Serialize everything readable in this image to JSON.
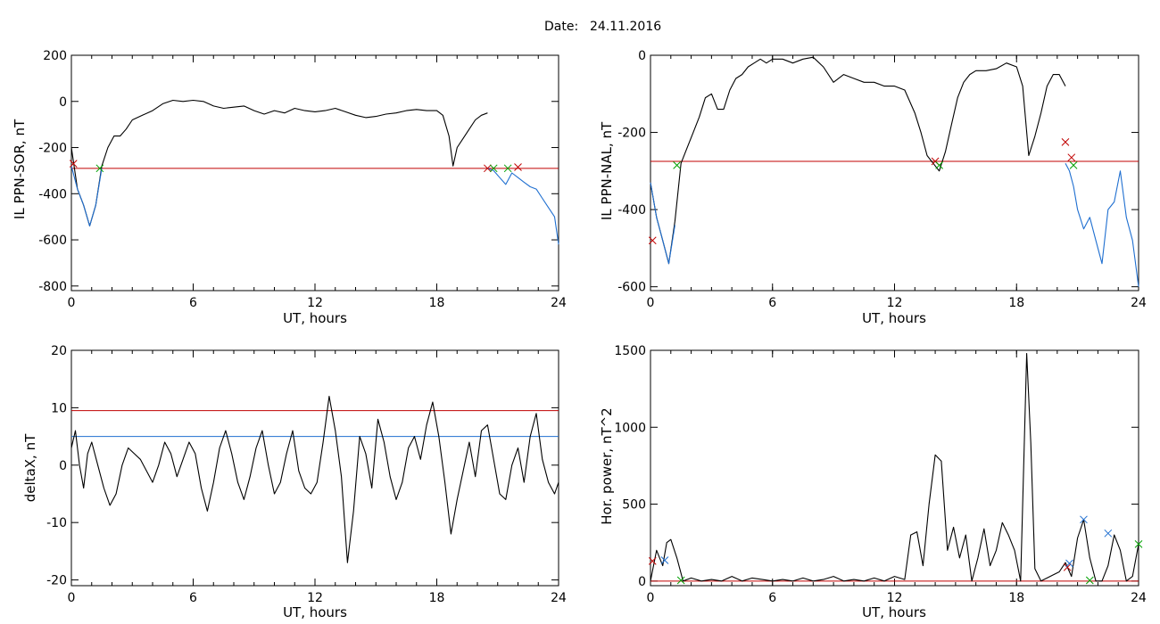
{
  "figure": {
    "date_label": "Date:",
    "date_value": "24.11.2016"
  },
  "colors": {
    "trace": "#000000",
    "threshold_red": "#c00000",
    "threshold_blue": "#1f6fd0",
    "marker_red": "#c00000",
    "marker_green": "#00a000",
    "marker_blue": "#1f6fd0"
  },
  "chart_data": [
    {
      "type": "line",
      "xlabel": "UT, hours",
      "ylabel": "IL PPN-SOR, nT",
      "xlim": [
        0,
        24
      ],
      "ylim": [
        -820,
        200
      ],
      "xticks": [
        "0",
        "6",
        "12",
        "18",
        "24"
      ],
      "yticks": [
        "200",
        "0",
        "-200",
        "-400",
        "-600",
        "-800"
      ],
      "grid": false,
      "series": [
        {
          "color": "#000000",
          "x": [
            0,
            0.3,
            0.6,
            0.9,
            1.2,
            1.5,
            1.8,
            2.1,
            2.4,
            2.7,
            3,
            3.5,
            4,
            4.5,
            5,
            5.5,
            6,
            6.5,
            7,
            7.5,
            8,
            8.5,
            9,
            9.5,
            10,
            10.5,
            11,
            11.5,
            12,
            12.5,
            13,
            13.5,
            14,
            14.5,
            15,
            15.5,
            16,
            16.5,
            17,
            17.5,
            18,
            18.3,
            18.6,
            18.8,
            19,
            19.3,
            19.6,
            19.9,
            20.2,
            20.5
          ],
          "y": [
            -200,
            -380,
            -450,
            -540,
            -450,
            -280,
            -200,
            -150,
            -150,
            -120,
            -80,
            -60,
            -40,
            -10,
            5,
            0,
            5,
            0,
            -20,
            -30,
            -25,
            -20,
            -40,
            -55,
            -40,
            -50,
            -30,
            -40,
            -45,
            -40,
            -30,
            -45,
            -60,
            -70,
            -65,
            -55,
            -50,
            -40,
            -35,
            -40,
            -40,
            -60,
            -150,
            -280,
            -200,
            -160,
            -120,
            -80,
            -60,
            -50
          ]
        },
        {
          "color": "#1f6fd0",
          "x": [
            0,
            0.3,
            0.6,
            0.9,
            1.2,
            1.5,
            20.5,
            20.8,
            21.1,
            21.4,
            21.7,
            22,
            22.3,
            22.6,
            22.9,
            23.2,
            23.5,
            23.8,
            24
          ],
          "y": [
            -280,
            -380,
            -450,
            -540,
            -450,
            -290,
            -290,
            -300,
            -330,
            -360,
            -310,
            -330,
            -350,
            -370,
            -380,
            -420,
            -460,
            -500,
            -620
          ]
        }
      ],
      "thresholds": [
        {
          "y": -290,
          "color": "#c00000"
        }
      ],
      "markers": [
        {
          "x": 0.1,
          "y": -270,
          "color": "#c00000"
        },
        {
          "x": 1.4,
          "y": -290,
          "color": "#00a000"
        },
        {
          "x": 20.5,
          "y": -290,
          "color": "#c00000"
        },
        {
          "x": 20.8,
          "y": -290,
          "color": "#00a000"
        },
        {
          "x": 21.5,
          "y": -290,
          "color": "#00a000"
        },
        {
          "x": 22.0,
          "y": -285,
          "color": "#c00000"
        }
      ]
    },
    {
      "type": "line",
      "xlabel": "UT, hours",
      "ylabel": "IL PPN-NAL, nT",
      "xlim": [
        0,
        24
      ],
      "ylim": [
        -610,
        0
      ],
      "xticks": [
        "0",
        "6",
        "12",
        "18",
        "24"
      ],
      "yticks": [
        "0",
        "-200",
        "-400",
        "-600"
      ],
      "grid": false,
      "series": [
        {
          "color": "#000000",
          "x": [
            0,
            0.3,
            0.6,
            0.9,
            1.2,
            1.5,
            1.8,
            2.1,
            2.4,
            2.7,
            3,
            3.3,
            3.6,
            3.9,
            4.2,
            4.5,
            4.8,
            5.1,
            5.4,
            5.7,
            6,
            6.5,
            7,
            7.5,
            8,
            8.5,
            9,
            9.5,
            10,
            10.5,
            11,
            11.5,
            12,
            12.5,
            13,
            13.3,
            13.6,
            13.9,
            14.2,
            14.5,
            14.8,
            15.1,
            15.4,
            15.7,
            16,
            16.5,
            17,
            17.5,
            18,
            18.3,
            18.6,
            18.9,
            19.2,
            19.5,
            19.8,
            20.1,
            20.4
          ],
          "y": [
            -330,
            -420,
            -480,
            -540,
            -430,
            -280,
            -240,
            -200,
            -160,
            -110,
            -100,
            -140,
            -140,
            -90,
            -60,
            -50,
            -30,
            -20,
            -10,
            -20,
            -10,
            -10,
            -20,
            -10,
            -5,
            -30,
            -70,
            -50,
            -60,
            -70,
            -70,
            -80,
            -80,
            -90,
            -150,
            -200,
            -260,
            -280,
            -300,
            -250,
            -180,
            -110,
            -70,
            -50,
            -40,
            -40,
            -35,
            -20,
            -30,
            -80,
            -260,
            -210,
            -150,
            -80,
            -50,
            -50,
            -80
          ]
        },
        {
          "color": "#1f6fd0",
          "x": [
            0,
            0.3,
            0.6,
            0.9,
            1.2,
            20.4,
            20.6,
            20.8,
            21,
            21.3,
            21.6,
            21.9,
            22.2,
            22.5,
            22.8,
            23.1,
            23.4,
            23.7,
            24
          ],
          "y": [
            -330,
            -420,
            -480,
            -540,
            -440,
            -280,
            -300,
            -340,
            -400,
            -450,
            -420,
            -480,
            -540,
            -400,
            -380,
            -300,
            -420,
            -480,
            -600
          ]
        }
      ],
      "thresholds": [
        {
          "y": -275,
          "color": "#c00000"
        }
      ],
      "markers": [
        {
          "x": 0.1,
          "y": -480,
          "color": "#c00000"
        },
        {
          "x": 1.3,
          "y": -285,
          "color": "#00a000"
        },
        {
          "x": 14.0,
          "y": -275,
          "color": "#c00000"
        },
        {
          "x": 14.2,
          "y": -285,
          "color": "#00a000"
        },
        {
          "x": 20.4,
          "y": -225,
          "color": "#c00000"
        },
        {
          "x": 20.7,
          "y": -265,
          "color": "#c00000"
        },
        {
          "x": 20.8,
          "y": -285,
          "color": "#00a000"
        }
      ]
    },
    {
      "type": "line",
      "xlabel": "UT, hours",
      "ylabel": "deltaX, nT",
      "xlim": [
        0,
        24
      ],
      "ylim": [
        -21,
        20
      ],
      "xticks": [
        "0",
        "6",
        "12",
        "18",
        "24"
      ],
      "yticks": [
        "20",
        "10",
        "0",
        "-10",
        "-20"
      ],
      "grid": false,
      "series": [
        {
          "color": "#000000",
          "x": [
            0,
            0.2,
            0.4,
            0.6,
            0.8,
            1,
            1.3,
            1.6,
            1.9,
            2.2,
            2.5,
            2.8,
            3.1,
            3.4,
            3.7,
            4,
            4.3,
            4.6,
            4.9,
            5.2,
            5.5,
            5.8,
            6.1,
            6.4,
            6.7,
            7,
            7.3,
            7.6,
            7.9,
            8.2,
            8.5,
            8.8,
            9.1,
            9.4,
            9.7,
            10,
            10.3,
            10.6,
            10.9,
            11.2,
            11.5,
            11.8,
            12.1,
            12.4,
            12.7,
            13,
            13.3,
            13.6,
            13.9,
            14.2,
            14.5,
            14.8,
            15.1,
            15.4,
            15.7,
            16,
            16.3,
            16.6,
            16.9,
            17.2,
            17.5,
            17.8,
            18.1,
            18.4,
            18.7,
            19,
            19.3,
            19.6,
            19.9,
            20.2,
            20.5,
            20.8,
            21.1,
            21.4,
            21.7,
            22,
            22.3,
            22.6,
            22.9,
            23.2,
            23.5,
            23.8,
            24
          ],
          "y": [
            3,
            6,
            0,
            -4,
            2,
            4,
            0,
            -4,
            -7,
            -5,
            0,
            3,
            2,
            1,
            -1,
            -3,
            0,
            4,
            2,
            -2,
            1,
            4,
            2,
            -4,
            -8,
            -3,
            3,
            6,
            2,
            -3,
            -6,
            -2,
            3,
            6,
            0,
            -5,
            -3,
            2,
            6,
            -1,
            -4,
            -5,
            -3,
            4,
            12,
            6,
            -2,
            -17,
            -8,
            5,
            2,
            -4,
            8,
            4,
            -2,
            -6,
            -3,
            3,
            5,
            1,
            7,
            11,
            5,
            -3,
            -12,
            -6,
            -1,
            4,
            -2,
            6,
            7,
            1,
            -5,
            -6,
            0,
            3,
            -3,
            5,
            9,
            1,
            -3,
            -5,
            -3
          ]
        }
      ],
      "thresholds": [
        {
          "y": 9.5,
          "color": "#c00000"
        },
        {
          "y": 5,
          "color": "#1f6fd0"
        }
      ],
      "markers": []
    },
    {
      "type": "line",
      "xlabel": "UT, hours",
      "ylabel": "Hor. power, nT^2",
      "xlim": [
        0,
        24
      ],
      "ylim": [
        -30,
        1500
      ],
      "xticks": [
        "0",
        "6",
        "12",
        "18",
        "24"
      ],
      "yticks": [
        "1500",
        "1000",
        "500",
        "0"
      ],
      "grid": false,
      "series": [
        {
          "color": "#000000",
          "x": [
            0,
            0.3,
            0.6,
            0.8,
            1,
            1.3,
            1.6,
            2,
            2.5,
            3,
            3.5,
            4,
            4.5,
            5,
            5.5,
            6,
            6.5,
            7,
            7.5,
            8,
            8.5,
            9,
            9.5,
            10,
            10.5,
            11,
            11.5,
            12,
            12.5,
            12.8,
            13.1,
            13.4,
            13.7,
            14,
            14.3,
            14.6,
            14.9,
            15.2,
            15.5,
            15.8,
            16.1,
            16.4,
            16.7,
            17,
            17.3,
            17.6,
            17.9,
            18.2,
            18.5,
            18.7,
            18.9,
            19.2,
            19.5,
            19.8,
            20.1,
            20.4,
            20.7,
            21,
            21.3,
            21.6,
            21.9,
            22.2,
            22.5,
            22.8,
            23.1,
            23.4,
            23.7,
            24
          ],
          "y": [
            0,
            200,
            100,
            250,
            270,
            150,
            0,
            20,
            0,
            10,
            0,
            30,
            0,
            20,
            10,
            0,
            10,
            0,
            20,
            0,
            10,
            30,
            0,
            10,
            0,
            20,
            0,
            30,
            10,
            300,
            320,
            100,
            500,
            820,
            780,
            200,
            350,
            150,
            300,
            0,
            150,
            340,
            100,
            200,
            380,
            300,
            200,
            0,
            1480,
            900,
            80,
            0,
            20,
            40,
            60,
            120,
            30,
            280,
            400,
            150,
            0,
            0,
            100,
            300,
            200,
            0,
            30,
            240
          ]
        }
      ],
      "thresholds": [
        {
          "y": 0,
          "color": "#c00000"
        }
      ],
      "markers": [
        {
          "x": 0.1,
          "y": 130,
          "color": "#c00000"
        },
        {
          "x": 0.7,
          "y": 135,
          "color": "#1f6fd0"
        },
        {
          "x": 1.5,
          "y": 5,
          "color": "#00a000"
        },
        {
          "x": 20.5,
          "y": 90,
          "color": "#c00000"
        },
        {
          "x": 20.6,
          "y": 115,
          "color": "#1f6fd0"
        },
        {
          "x": 21.3,
          "y": 400,
          "color": "#1f6fd0"
        },
        {
          "x": 21.6,
          "y": 5,
          "color": "#00a000"
        },
        {
          "x": 22.5,
          "y": 310,
          "color": "#1f6fd0"
        },
        {
          "x": 24.0,
          "y": 240,
          "color": "#00a000"
        }
      ]
    }
  ]
}
